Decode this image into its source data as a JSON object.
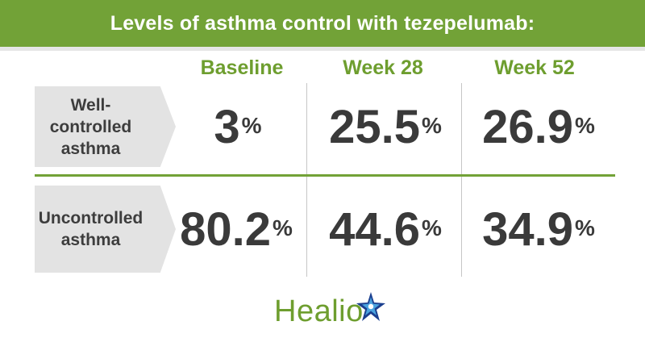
{
  "header": {
    "title": "Levels of asthma control with tezepelumab:"
  },
  "chart_data": {
    "type": "table",
    "title": "Levels of asthma control with tezepelumab:",
    "columns": [
      "Baseline",
      "Week 28",
      "Week 52"
    ],
    "rows": [
      {
        "label": "Well-controlled asthma",
        "label_lines": [
          "Well-",
          "controlled",
          "asthma"
        ],
        "values": [
          3,
          25.5,
          26.9
        ],
        "display": [
          "3",
          "25.5",
          "26.9"
        ]
      },
      {
        "label": "Uncontrolled asthma",
        "label_lines": [
          "Uncontrolled",
          "asthma"
        ],
        "values": [
          80.2,
          44.6,
          34.9
        ],
        "display": [
          "80.2",
          "44.6",
          "34.9"
        ]
      }
    ],
    "unit": "%"
  },
  "logo": {
    "text": "Healio",
    "icon": "star-icon"
  },
  "colors": {
    "accent": "#72a237",
    "text": "#3a3a3a",
    "label_bg": "#e3e3e3",
    "divider": "#c6c6c6"
  }
}
